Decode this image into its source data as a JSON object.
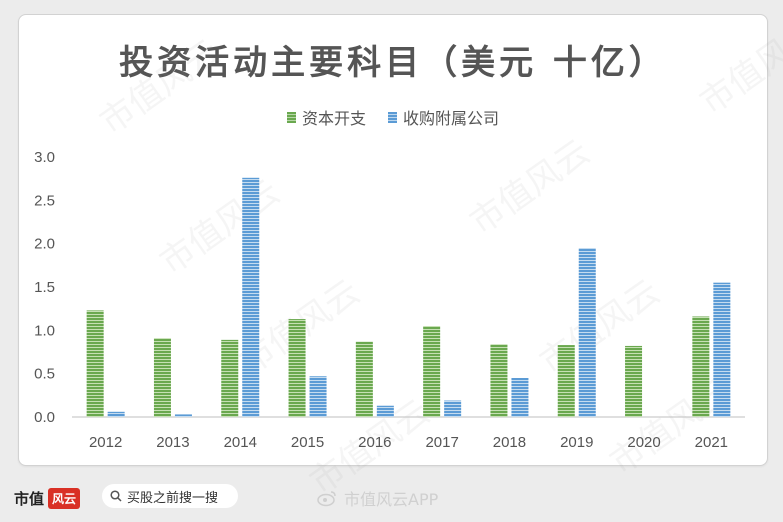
{
  "title": "投资活动主要科目（美元 十亿）",
  "legend": [
    {
      "name": "资本开支",
      "color": "#6aa84f"
    },
    {
      "name": "收购附属公司",
      "color": "#5b9bd5"
    }
  ],
  "chart_data": {
    "type": "bar",
    "categories": [
      "2012",
      "2013",
      "2014",
      "2015",
      "2016",
      "2017",
      "2018",
      "2019",
      "2020",
      "2021"
    ],
    "series": [
      {
        "name": "资本开支",
        "color": "#6aa84f",
        "values": [
          1.23,
          0.91,
          0.89,
          1.13,
          0.87,
          1.05,
          0.84,
          0.83,
          0.82,
          1.16
        ]
      },
      {
        "name": "收购附属公司",
        "color": "#5b9bd5",
        "values": [
          0.06,
          0.03,
          2.76,
          0.47,
          0.13,
          0.19,
          0.45,
          1.95,
          0.0,
          1.55
        ]
      }
    ],
    "yticks": [
      "0.0",
      "0.5",
      "1.0",
      "1.5",
      "2.0",
      "2.5",
      "3.0"
    ],
    "ylim": [
      0,
      3.0
    ],
    "xlabel": "",
    "ylabel": "",
    "grid": false,
    "legend_position": "top"
  },
  "footer": {
    "brand": "市值",
    "brand_logo_text": "风云",
    "search_placeholder": "买股之前搜一搜",
    "app_watermark": "市值风云APP"
  },
  "watermark_text": "市值风云",
  "colors": {
    "green": "#6aa84f",
    "blue": "#5b9bd5",
    "axis": "#bfbfbf",
    "text": "#555555"
  }
}
